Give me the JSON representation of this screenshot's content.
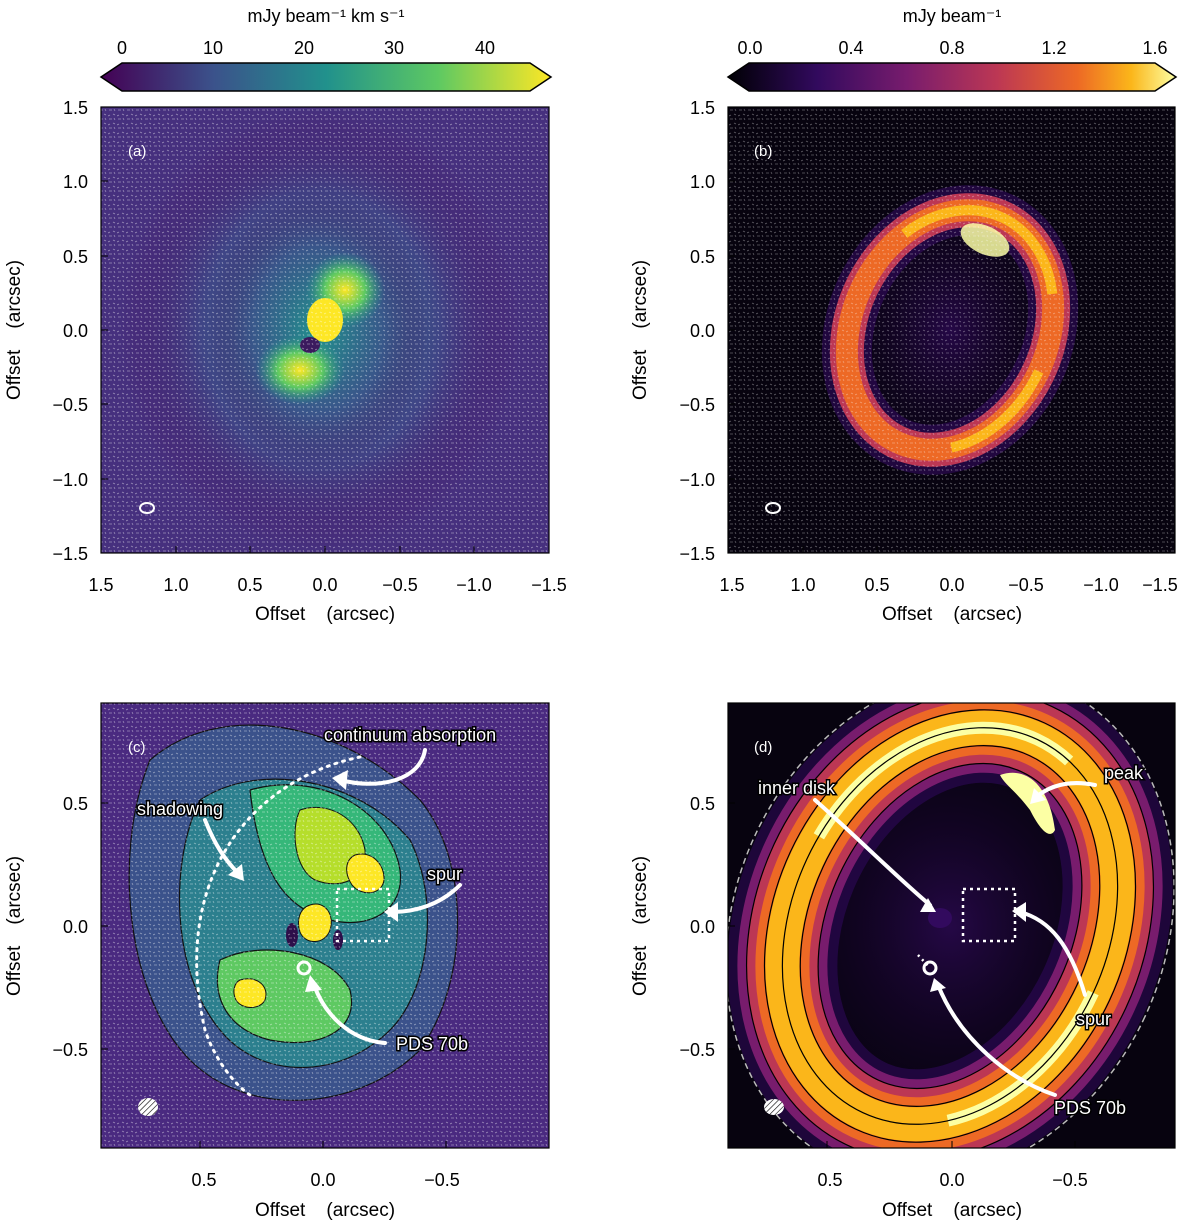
{
  "panels": {
    "a": {
      "label": "(a)",
      "colorbar": {
        "unit": "mJy beam⁻¹ km s⁻¹",
        "ticks": [
          "0",
          "10",
          "20",
          "30",
          "40"
        ],
        "colormap": "viridis",
        "range": [
          -5,
          47
        ]
      },
      "xticks": [
        "1.5",
        "1.0",
        "0.5",
        "0.0",
        "−0.5",
        "−1.0",
        "−1.5"
      ],
      "yticks": [
        "1.5",
        "1.0",
        "0.5",
        "0.0",
        "−0.5",
        "−1.0",
        "−1.5"
      ],
      "xlabel": "Offset    (arcsec)",
      "ylabel": "Offset    (arcsec)"
    },
    "b": {
      "label": "(b)",
      "colorbar": {
        "unit": "mJy beam⁻¹",
        "ticks": [
          "0.0",
          "0.4",
          "0.8",
          "1.2",
          "1.6"
        ],
        "colormap": "inferno",
        "range": [
          -0.1,
          1.7
        ]
      },
      "xticks": [
        "1.5",
        "1.0",
        "0.5",
        "0.0",
        "−0.5",
        "−1.0",
        "−1.5"
      ],
      "yticks": [
        "1.5",
        "1.0",
        "0.5",
        "0.0",
        "−0.5",
        "−1.0",
        "−1.5"
      ],
      "xlabel": "Offset    (arcsec)",
      "ylabel": "Offset    (arcsec)"
    },
    "c": {
      "label": "(c)",
      "xticks": [
        "0.5",
        "0.0",
        "−0.5"
      ],
      "yticks": [
        "0.5",
        "0.0",
        "−0.5"
      ],
      "xlabel": "Offset    (arcsec)",
      "ylabel": "Offset    (arcsec)",
      "annotations": {
        "continuum": "continuum absorption",
        "shadowing": "shadowing",
        "spur": "spur",
        "planet": "PDS 70b"
      }
    },
    "d": {
      "label": "(d)",
      "xticks": [
        "0.5",
        "0.0",
        "−0.5"
      ],
      "yticks": [
        "0.5",
        "0.0",
        "−0.5"
      ],
      "xlabel": "Offset    (arcsec)",
      "ylabel": "Offset    (arcsec)",
      "annotations": {
        "inner_disk": "inner disk",
        "peak": "peak",
        "spur": "spur",
        "planet": "PDS 70b"
      }
    }
  },
  "colors": {
    "viridis_low": "#440154",
    "viridis_high": "#fde725",
    "inferno_low": "#000004",
    "inferno_high": "#fcffa4"
  }
}
